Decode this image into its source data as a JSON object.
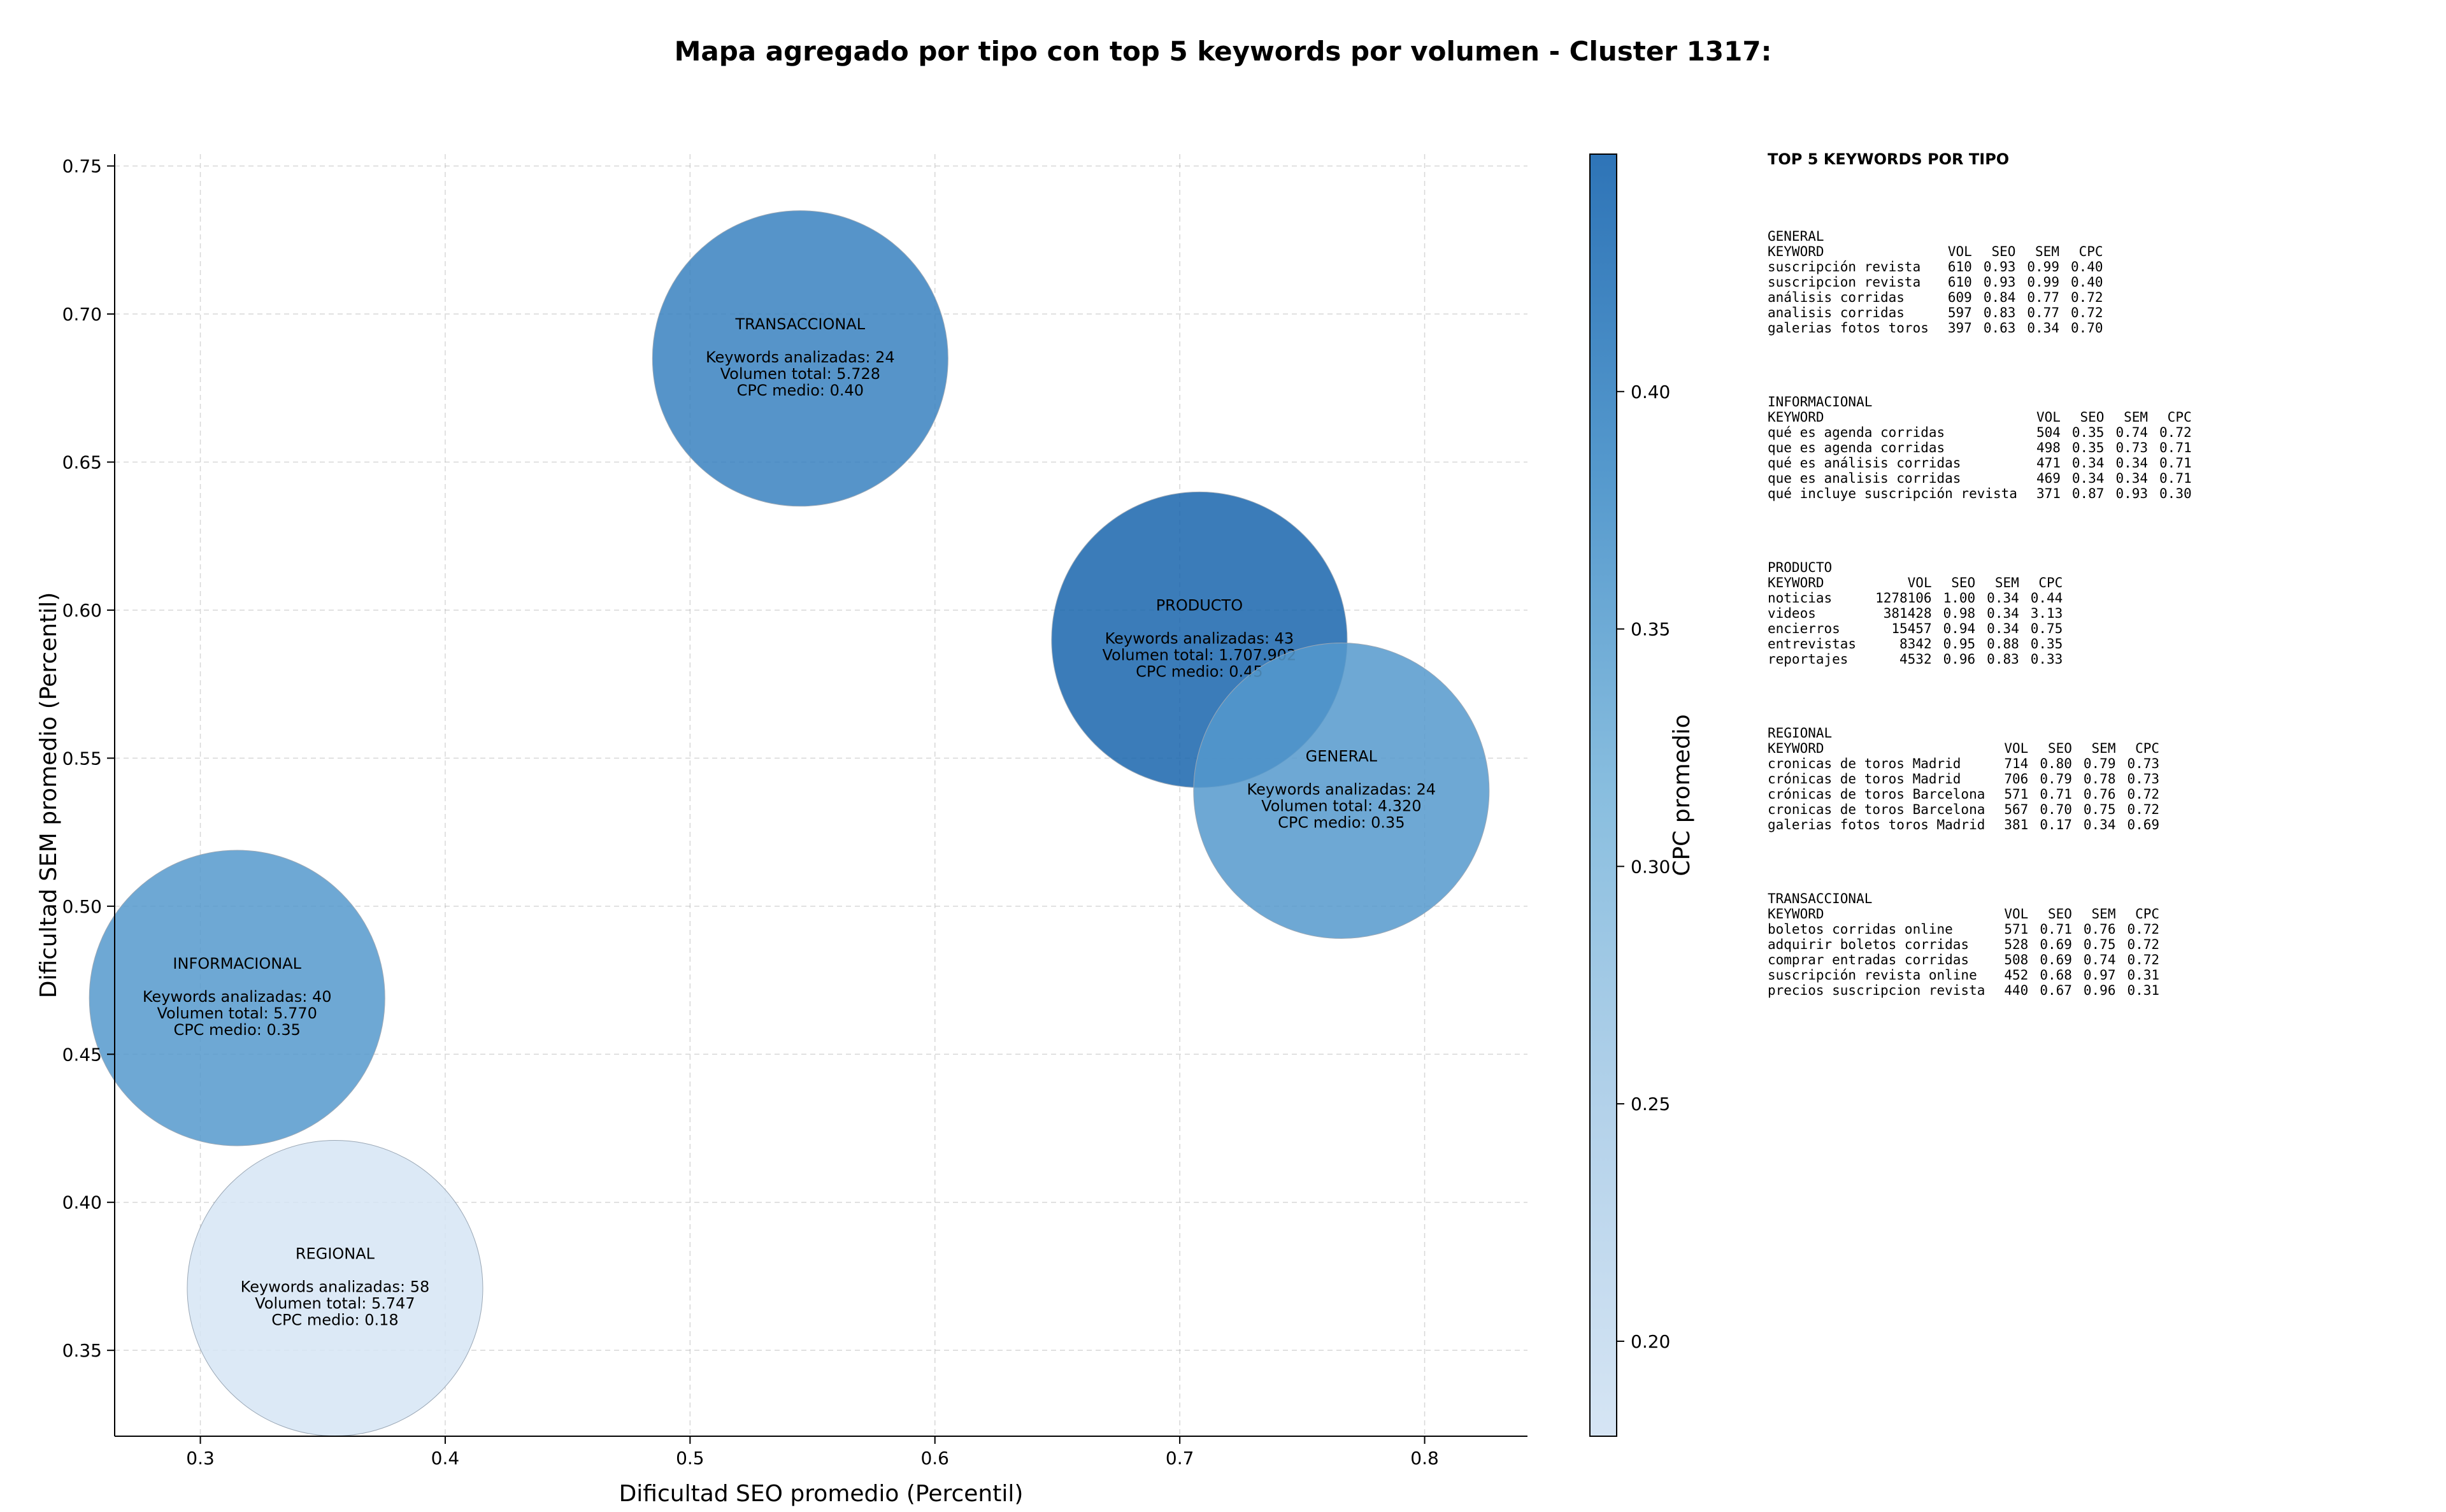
{
  "chart_data": {
    "type": "scatter",
    "title": "Mapa agregado por tipo con top 5 keywords por volumen - Cluster 1317:",
    "xlabel": "Dificultad SEO promedio (Percentil)",
    "ylabel": "Dificultad SEM promedio (Percentil)",
    "xlim": [
      0.265,
      0.842
    ],
    "ylim": [
      0.321,
      0.754
    ],
    "xticks": [
      "0.3",
      "0.4",
      "0.5",
      "0.6",
      "0.7",
      "0.8"
    ],
    "yticks": [
      "0.35",
      "0.40",
      "0.45",
      "0.50",
      "0.55",
      "0.60",
      "0.65",
      "0.70",
      "0.75"
    ],
    "grid": true,
    "colorbar": {
      "label": "CPC promedio",
      "range": [
        0.18,
        0.45
      ],
      "ticks": [
        "0.20",
        "0.25",
        "0.30",
        "0.35",
        "0.40"
      ]
    },
    "points": [
      {
        "name": "TRANSACCIONAL",
        "x": 0.545,
        "y": 0.685,
        "cpc": 0.4,
        "keywords_text": "Keywords analizadas: 24",
        "volume_text": "Volumen total: 5.728",
        "cpc_text": "CPC medio: 0.40"
      },
      {
        "name": "PRODUCTO",
        "x": 0.708,
        "y": 0.59,
        "cpc": 0.45,
        "keywords_text": "Keywords analizadas: 43",
        "volume_text": "Volumen total: 1.707.902",
        "cpc_text": "CPC medio: 0.45"
      },
      {
        "name": "GENERAL",
        "x": 0.766,
        "y": 0.539,
        "cpc": 0.35,
        "keywords_text": "Keywords analizadas: 24",
        "volume_text": "Volumen total: 4.320",
        "cpc_text": "CPC medio: 0.35"
      },
      {
        "name": "INFORMACIONAL",
        "x": 0.315,
        "y": 0.469,
        "cpc": 0.35,
        "keywords_text": "Keywords analizadas: 40",
        "volume_text": "Volumen total: 5.770",
        "cpc_text": "CPC medio: 0.35"
      },
      {
        "name": "REGIONAL",
        "x": 0.355,
        "y": 0.371,
        "cpc": 0.18,
        "keywords_text": "Keywords analizadas: 58",
        "volume_text": "Volumen total: 5.747",
        "cpc_text": "CPC medio: 0.18"
      }
    ]
  },
  "side_panel": {
    "title": "TOP 5 KEYWORDS POR TIPO",
    "headers": [
      "KEYWORD",
      "VOL",
      "SEO",
      "SEM",
      "CPC"
    ],
    "sections": [
      {
        "name": "GENERAL",
        "rows": [
          [
            "suscripción revista",
            "610",
            "0.93",
            "0.99",
            "0.40"
          ],
          [
            "suscripcion revista",
            "610",
            "0.93",
            "0.99",
            "0.40"
          ],
          [
            "análisis corridas",
            "609",
            "0.84",
            "0.77",
            "0.72"
          ],
          [
            "analisis corridas",
            "597",
            "0.83",
            "0.77",
            "0.72"
          ],
          [
            "galerias fotos toros",
            "397",
            "0.63",
            "0.34",
            "0.70"
          ]
        ]
      },
      {
        "name": "INFORMACIONAL",
        "rows": [
          [
            "qué es agenda corridas",
            "504",
            "0.35",
            "0.74",
            "0.72"
          ],
          [
            "que es agenda corridas",
            "498",
            "0.35",
            "0.73",
            "0.71"
          ],
          [
            "qué es análisis corridas",
            "471",
            "0.34",
            "0.34",
            "0.71"
          ],
          [
            "que es analisis corridas",
            "469",
            "0.34",
            "0.34",
            "0.71"
          ],
          [
            "qué incluye suscripción revista",
            "371",
            "0.87",
            "0.93",
            "0.30"
          ]
        ]
      },
      {
        "name": "PRODUCTO",
        "rows": [
          [
            "noticias",
            "1278106",
            "1.00",
            "0.34",
            "0.44"
          ],
          [
            "videos",
            "381428",
            "0.98",
            "0.34",
            "3.13"
          ],
          [
            "encierros",
            "15457",
            "0.94",
            "0.34",
            "0.75"
          ],
          [
            "entrevistas",
            "8342",
            "0.95",
            "0.88",
            "0.35"
          ],
          [
            "reportajes",
            "4532",
            "0.96",
            "0.83",
            "0.33"
          ]
        ]
      },
      {
        "name": "REGIONAL",
        "rows": [
          [
            "cronicas de toros Madrid",
            "714",
            "0.80",
            "0.79",
            "0.73"
          ],
          [
            "crónicas de toros Madrid",
            "706",
            "0.79",
            "0.78",
            "0.73"
          ],
          [
            "crónicas de toros Barcelona",
            "571",
            "0.71",
            "0.76",
            "0.72"
          ],
          [
            "cronicas de toros Barcelona",
            "567",
            "0.70",
            "0.75",
            "0.72"
          ],
          [
            "galerias fotos toros Madrid",
            "381",
            "0.17",
            "0.34",
            "0.69"
          ]
        ]
      },
      {
        "name": "TRANSACCIONAL",
        "rows": [
          [
            "boletos corridas online",
            "571",
            "0.71",
            "0.76",
            "0.72"
          ],
          [
            "adquirir boletos corridas",
            "528",
            "0.69",
            "0.75",
            "0.72"
          ],
          [
            "comprar entradas corridas",
            "508",
            "0.69",
            "0.74",
            "0.72"
          ],
          [
            "suscripción revista online",
            "452",
            "0.68",
            "0.97",
            "0.31"
          ],
          [
            "precios suscripcion revista",
            "440",
            "0.67",
            "0.96",
            "0.31"
          ]
        ]
      }
    ]
  }
}
